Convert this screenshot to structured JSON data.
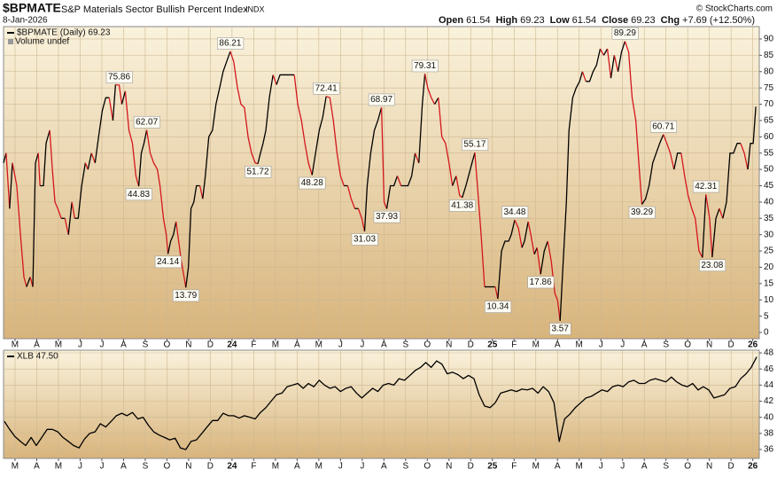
{
  "header": {
    "symbol": "$BPMATE",
    "title": "S&P Materials Sector Bullish Percent Index",
    "exchange": "INDX",
    "date": "8-Jan-2026",
    "copyright": "© StockCharts.com",
    "quote": [
      {
        "label": "Open",
        "value": "61.54"
      },
      {
        "label": "High",
        "value": "69.23"
      },
      {
        "label": "Low",
        "value": "61.54"
      },
      {
        "label": "Close",
        "value": "69.23"
      },
      {
        "label": "Chg",
        "value": "+7.69 (+12.50%)"
      }
    ]
  },
  "chart_data": [
    {
      "type": "line",
      "legend": "$BPMATE (Daily) 69.23",
      "sublegend": "Volume undef",
      "up_color": "#000000",
      "down_color": "#d4161c",
      "grid": true,
      "xlim": [
        0.47,
        35.3
      ],
      "ylim": [
        -1.9,
        93.8
      ],
      "xticks": [
        {
          "value": 1,
          "label": "M"
        },
        {
          "value": 2,
          "label": "A"
        },
        {
          "value": 3,
          "label": "M"
        },
        {
          "value": 4,
          "label": "J"
        },
        {
          "value": 5,
          "label": "J"
        },
        {
          "value": 6,
          "label": "A"
        },
        {
          "value": 7,
          "label": "S"
        },
        {
          "value": 8,
          "label": "O"
        },
        {
          "value": 9,
          "label": "N"
        },
        {
          "value": 10,
          "label": "D"
        },
        {
          "value": 11,
          "label": "24"
        },
        {
          "value": 12,
          "label": "F"
        },
        {
          "value": 13,
          "label": "M"
        },
        {
          "value": 14,
          "label": "A"
        },
        {
          "value": 15,
          "label": "M"
        },
        {
          "value": 16,
          "label": "J"
        },
        {
          "value": 17,
          "label": "J"
        },
        {
          "value": 18,
          "label": "A"
        },
        {
          "value": 19,
          "label": "S"
        },
        {
          "value": 20,
          "label": "O"
        },
        {
          "value": 21,
          "label": "N"
        },
        {
          "value": 22,
          "label": "D"
        },
        {
          "value": 23,
          "label": "25"
        },
        {
          "value": 24,
          "label": "F"
        },
        {
          "value": 25,
          "label": "M"
        },
        {
          "value": 26,
          "label": "A"
        },
        {
          "value": 27,
          "label": "M"
        },
        {
          "value": 28,
          "label": "J"
        },
        {
          "value": 29,
          "label": "J"
        },
        {
          "value": 30,
          "label": "A"
        },
        {
          "value": 31,
          "label": "S"
        },
        {
          "value": 32,
          "label": "O"
        },
        {
          "value": 33,
          "label": "N"
        },
        {
          "value": 34,
          "label": "D"
        },
        {
          "value": 35,
          "label": "26"
        }
      ],
      "yticks": [
        0,
        5,
        10,
        15,
        20,
        25,
        30,
        35,
        40,
        45,
        50,
        55,
        60,
        65,
        70,
        75,
        80,
        85,
        90
      ],
      "x": [
        0.47,
        0.59,
        0.75,
        0.88,
        1.08,
        1.25,
        1.41,
        1.53,
        1.7,
        1.82,
        1.94,
        2.07,
        2.15,
        2.31,
        2.43,
        2.6,
        2.72,
        2.84,
        2.97,
        3.13,
        3.3,
        3.46,
        3.62,
        3.75,
        3.91,
        4.07,
        4.24,
        4.36,
        4.52,
        4.69,
        4.85,
        5.02,
        5.18,
        5.34,
        5.51,
        5.63,
        5.8,
        5.92,
        6.08,
        6.25,
        6.41,
        6.57,
        6.7,
        6.82,
        6.94,
        7.07,
        7.23,
        7.39,
        7.56,
        7.68,
        7.84,
        7.97,
        8.05,
        8.17,
        8.3,
        8.42,
        8.54,
        8.66,
        8.79,
        8.87,
        8.99,
        9.11,
        9.24,
        9.36,
        9.52,
        9.65,
        9.77,
        9.93,
        10.1,
        10.26,
        10.43,
        10.59,
        10.75,
        10.92,
        11.08,
        11.25,
        11.41,
        11.57,
        11.74,
        11.9,
        12.07,
        12.19,
        12.31,
        12.43,
        12.56,
        12.72,
        12.89,
        13.05,
        13.21,
        13.38,
        13.54,
        13.7,
        13.87,
        14.03,
        14.2,
        14.36,
        14.52,
        14.69,
        14.85,
        15.02,
        15.18,
        15.34,
        15.51,
        15.67,
        15.84,
        16.0,
        16.16,
        16.33,
        16.49,
        16.66,
        16.82,
        16.98,
        17.11,
        17.23,
        17.39,
        17.56,
        17.72,
        17.89,
        18.01,
        18.13,
        18.3,
        18.46,
        18.62,
        18.79,
        18.95,
        19.11,
        19.28,
        19.44,
        19.61,
        19.77,
        19.89,
        20.02,
        20.18,
        20.34,
        20.51,
        20.67,
        20.84,
        21.0,
        21.16,
        21.33,
        21.49,
        21.61,
        21.78,
        21.98,
        22.19,
        22.31,
        22.48,
        22.64,
        22.8,
        22.97,
        23.13,
        23.25,
        23.42,
        23.58,
        23.75,
        23.87,
        24.03,
        24.2,
        24.36,
        24.48,
        24.65,
        24.77,
        24.93,
        25.06,
        25.22,
        25.39,
        25.55,
        25.71,
        25.88,
        26.0,
        26.12,
        26.25,
        26.41,
        26.53,
        26.7,
        26.86,
        27.02,
        27.15,
        27.31,
        27.48,
        27.64,
        27.8,
        27.97,
        28.13,
        28.3,
        28.46,
        28.62,
        28.79,
        28.95,
        29.11,
        29.28,
        29.44,
        29.61,
        29.77,
        29.89,
        30.06,
        30.22,
        30.39,
        30.55,
        30.71,
        30.88,
        31.04,
        31.2,
        31.37,
        31.53,
        31.7,
        31.86,
        32.02,
        32.19,
        32.35,
        32.52,
        32.68,
        32.84,
        33.01,
        33.13,
        33.3,
        33.46,
        33.62,
        33.79,
        33.95,
        34.11,
        34.28,
        34.44,
        34.61,
        34.77,
        34.89,
        35.02,
        35.14
      ],
      "values": [
        52,
        55,
        38,
        52,
        45,
        30,
        17,
        14,
        17,
        14,
        52,
        55,
        45,
        45,
        58,
        62,
        50,
        40,
        38,
        35,
        35,
        30,
        40,
        35,
        35,
        45,
        52,
        50,
        55,
        52,
        60,
        68,
        72,
        72,
        65,
        76,
        75.86,
        70,
        74,
        62,
        58,
        48,
        44.83,
        55,
        58,
        62.07,
        55,
        52,
        50,
        45,
        35,
        30,
        24.14,
        28,
        30,
        34,
        28,
        22,
        17,
        13.79,
        20,
        38,
        40,
        45,
        45,
        41,
        48,
        60,
        62,
        70,
        75,
        80,
        83,
        86.21,
        83,
        75,
        70,
        69,
        60,
        55,
        52,
        51.72,
        55,
        58,
        62,
        72,
        79,
        76,
        79,
        79,
        79,
        79,
        79,
        70,
        65,
        58,
        52,
        48.28,
        55,
        62,
        66,
        72.41,
        72,
        65,
        55,
        48,
        45,
        45,
        41,
        38,
        38,
        35,
        31.03,
        45,
        55,
        62,
        65,
        68.97,
        40,
        37.93,
        45,
        45,
        48,
        45,
        45,
        45,
        48,
        55,
        52,
        70,
        79.31,
        75,
        72,
        70,
        72,
        60,
        58,
        52,
        45,
        48,
        42,
        41.38,
        45,
        50,
        55.17,
        45,
        30,
        14,
        14,
        14,
        14,
        10.34,
        25,
        28,
        28,
        30,
        34.48,
        32,
        26,
        28,
        34,
        30,
        24,
        26,
        17.86,
        25,
        28,
        22,
        12,
        10,
        3.57,
        20,
        40,
        62,
        72,
        75,
        77,
        80,
        77,
        77,
        80,
        82,
        87,
        85,
        87,
        78,
        85,
        80,
        86,
        89.29,
        86,
        72,
        65,
        50,
        39.29,
        41,
        45,
        52,
        55,
        58,
        60.71,
        58,
        55,
        50,
        55,
        55,
        48,
        42,
        38,
        35,
        25,
        23,
        42.31,
        35,
        23.08,
        35,
        38,
        35,
        40,
        55,
        55,
        58,
        58,
        55,
        50,
        58,
        58,
        69.23
      ],
      "annotations": [
        {
          "x": 5.8,
          "value": 75.86,
          "position": "above"
        },
        {
          "x": 7.07,
          "value": 62.07,
          "position": "above"
        },
        {
          "x": 6.7,
          "value": 44.83,
          "position": "below"
        },
        {
          "x": 8.05,
          "value": 24.14,
          "position": "below"
        },
        {
          "x": 8.87,
          "value": 13.79,
          "position": "below"
        },
        {
          "x": 10.92,
          "value": 86.21,
          "position": "above"
        },
        {
          "x": 12.19,
          "value": 51.72,
          "position": "below"
        },
        {
          "x": 14.69,
          "value": 48.28,
          "position": "below"
        },
        {
          "x": 15.34,
          "value": 72.41,
          "position": "above"
        },
        {
          "x": 17.11,
          "value": 31.03,
          "position": "below"
        },
        {
          "x": 17.89,
          "value": 68.97,
          "position": "above"
        },
        {
          "x": 18.13,
          "value": 37.93,
          "position": "below"
        },
        {
          "x": 19.89,
          "value": 79.31,
          "position": "above"
        },
        {
          "x": 21.61,
          "value": 41.38,
          "position": "below"
        },
        {
          "x": 22.19,
          "value": 55.17,
          "position": "above"
        },
        {
          "x": 23.25,
          "value": 10.34,
          "position": "below"
        },
        {
          "x": 24.03,
          "value": 34.48,
          "position": "above"
        },
        {
          "x": 25.22,
          "value": 17.86,
          "position": "below"
        },
        {
          "x": 26.12,
          "value": 3.57,
          "position": "below"
        },
        {
          "x": 29.11,
          "value": 89.29,
          "position": "above"
        },
        {
          "x": 29.89,
          "value": 39.29,
          "position": "below"
        },
        {
          "x": 30.88,
          "value": 60.71,
          "position": "above"
        },
        {
          "x": 32.84,
          "value": 42.31,
          "position": "above"
        },
        {
          "x": 33.13,
          "value": 23.08,
          "position": "below"
        }
      ]
    },
    {
      "type": "line",
      "legend": "XLB 47.50",
      "color": "#000000",
      "grid": true,
      "xlim": [
        0.47,
        35.3
      ],
      "ylim": [
        34.9,
        48.33
      ],
      "xticks": [
        {
          "value": 1,
          "label": "M"
        },
        {
          "value": 2,
          "label": "A"
        },
        {
          "value": 3,
          "label": "M"
        },
        {
          "value": 4,
          "label": "J"
        },
        {
          "value": 5,
          "label": "J"
        },
        {
          "value": 6,
          "label": "A"
        },
        {
          "value": 7,
          "label": "S"
        },
        {
          "value": 8,
          "label": "O"
        },
        {
          "value": 9,
          "label": "N"
        },
        {
          "value": 10,
          "label": "D"
        },
        {
          "value": 11,
          "label": "24"
        },
        {
          "value": 12,
          "label": "F"
        },
        {
          "value": 13,
          "label": "M"
        },
        {
          "value": 14,
          "label": "A"
        },
        {
          "value": 15,
          "label": "M"
        },
        {
          "value": 16,
          "label": "J"
        },
        {
          "value": 17,
          "label": "J"
        },
        {
          "value": 18,
          "label": "A"
        },
        {
          "value": 19,
          "label": "S"
        },
        {
          "value": 20,
          "label": "O"
        },
        {
          "value": 21,
          "label": "N"
        },
        {
          "value": 22,
          "label": "D"
        },
        {
          "value": 23,
          "label": "25"
        },
        {
          "value": 24,
          "label": "F"
        },
        {
          "value": 25,
          "label": "M"
        },
        {
          "value": 26,
          "label": "A"
        },
        {
          "value": 27,
          "label": "M"
        },
        {
          "value": 28,
          "label": "J"
        },
        {
          "value": 29,
          "label": "J"
        },
        {
          "value": 30,
          "label": "A"
        },
        {
          "value": 31,
          "label": "S"
        },
        {
          "value": 32,
          "label": "O"
        },
        {
          "value": 33,
          "label": "N"
        },
        {
          "value": 34,
          "label": "D"
        },
        {
          "value": 35,
          "label": "26"
        }
      ],
      "yticks": [
        36,
        38,
        40,
        42,
        44,
        46,
        48
      ],
      "x": [
        0.51,
        0.75,
        1.0,
        1.25,
        1.49,
        1.74,
        1.98,
        2.23,
        2.48,
        2.72,
        2.97,
        3.21,
        3.46,
        3.7,
        3.95,
        4.2,
        4.44,
        4.69,
        4.93,
        5.18,
        5.43,
        5.67,
        5.92,
        6.16,
        6.41,
        6.66,
        6.9,
        7.15,
        7.39,
        7.64,
        7.89,
        8.13,
        8.38,
        8.62,
        8.87,
        9.11,
        9.36,
        9.61,
        9.85,
        10.1,
        10.34,
        10.59,
        10.84,
        11.08,
        11.33,
        11.57,
        11.82,
        12.07,
        12.31,
        12.56,
        12.8,
        13.05,
        13.3,
        13.54,
        13.79,
        14.03,
        14.28,
        14.52,
        14.77,
        15.02,
        15.26,
        15.51,
        15.75,
        16.0,
        16.25,
        16.49,
        16.74,
        16.98,
        17.23,
        17.48,
        17.72,
        17.97,
        18.21,
        18.46,
        18.7,
        18.95,
        19.2,
        19.44,
        19.69,
        19.93,
        20.18,
        20.43,
        20.67,
        20.92,
        21.16,
        21.41,
        21.66,
        21.9,
        22.15,
        22.39,
        22.64,
        22.89,
        23.13,
        23.38,
        23.62,
        23.87,
        24.11,
        24.36,
        24.61,
        24.85,
        25.1,
        25.34,
        25.59,
        25.84,
        26.08,
        26.33,
        26.57,
        26.82,
        27.07,
        27.31,
        27.56,
        27.8,
        28.05,
        28.3,
        28.54,
        28.79,
        29.03,
        29.28,
        29.52,
        29.77,
        30.02,
        30.26,
        30.51,
        30.75,
        31.0,
        31.25,
        31.49,
        31.74,
        31.98,
        32.23,
        32.48,
        32.72,
        32.97,
        33.21,
        33.46,
        33.7,
        33.95,
        34.2,
        34.44,
        34.69,
        34.93,
        35.18
      ],
      "values": [
        39.5,
        38.5,
        37.6,
        37,
        36.5,
        37.5,
        36.5,
        37.5,
        38.5,
        38.5,
        38.2,
        37.5,
        37,
        36.5,
        36.2,
        37.3,
        38,
        38.2,
        39.2,
        38.8,
        39.5,
        40.2,
        40.5,
        40.2,
        40.6,
        39.8,
        40,
        39,
        38.2,
        37.8,
        37.5,
        37.2,
        37.4,
        36.2,
        36,
        37,
        37.2,
        38,
        38.8,
        39.6,
        39.6,
        40.5,
        40.2,
        40.2,
        39.9,
        40.2,
        40,
        39.8,
        40.6,
        41.2,
        42,
        42.8,
        43,
        43.8,
        44,
        44.2,
        43.6,
        44.2,
        43.8,
        44.6,
        44,
        43.6,
        43.8,
        43.2,
        43.6,
        43.8,
        43,
        42.4,
        43,
        43.6,
        43.2,
        44,
        44.2,
        44,
        44.8,
        44.6,
        45.2,
        45.8,
        46.2,
        46.8,
        46.2,
        47,
        46.6,
        45.4,
        45.6,
        45.3,
        44.8,
        45.2,
        44.8,
        42.8,
        41.4,
        41.2,
        41.8,
        43,
        43.2,
        43.4,
        43.2,
        43.5,
        43.4,
        43.6,
        43,
        43.8,
        43.2,
        41.8,
        37,
        39.8,
        40.4,
        41.2,
        41.8,
        42.4,
        42.6,
        43,
        43.4,
        43.2,
        43.8,
        44,
        43.8,
        44.4,
        44.6,
        44.2,
        44.2,
        44.6,
        44.8,
        44.6,
        44.4,
        45,
        44.4,
        44,
        43.8,
        44.2,
        43.4,
        43.8,
        43.4,
        42.4,
        42.6,
        42.8,
        43.6,
        43.8,
        44.8,
        45.4,
        46.2,
        47.5
      ]
    }
  ]
}
